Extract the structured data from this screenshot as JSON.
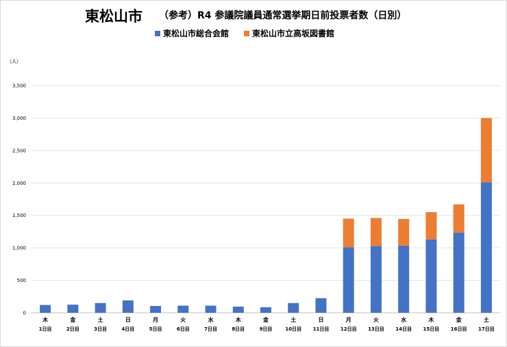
{
  "title": "東松山市",
  "subtitle": "（参考）R4 参議院議員通常選挙期日前投票者数（日別）",
  "unit_label": "（人）",
  "colors": {
    "series1": "#4472C4",
    "series2": "#ED7D31",
    "grid": "#e3e3e3",
    "axis": "#bfbfbf"
  },
  "chart_data": {
    "type": "bar",
    "stacked": true,
    "title": "（参考）R4 参議院議員通常選挙期日前投票者数（日別）",
    "ylabel": "（人）",
    "ylim": [
      0,
      3500
    ],
    "yticks": [
      "0",
      "500",
      "1,000",
      "1,500",
      "2,000",
      "2,500",
      "3,000",
      "3,500"
    ],
    "ytick_values": [
      0,
      500,
      1000,
      1500,
      2000,
      2500,
      3000,
      3500
    ],
    "grid": true,
    "legend_position": "top",
    "weekdays": [
      "木",
      "金",
      "土",
      "日",
      "月",
      "火",
      "水",
      "木",
      "金",
      "土",
      "日",
      "月",
      "火",
      "水",
      "木",
      "金",
      "土"
    ],
    "categories": [
      "1日目",
      "2日目",
      "3日目",
      "4日目",
      "5日目",
      "6日目",
      "7日目",
      "8日目",
      "9日目",
      "10日目",
      "11日目",
      "12日目",
      "13日目",
      "14日目",
      "15日目",
      "16日目",
      "17日目"
    ],
    "series": [
      {
        "name": "東松山市総合会館",
        "values": [
          120,
          125,
          150,
          190,
          105,
          110,
          110,
          95,
          85,
          150,
          225,
          1010,
          1030,
          1035,
          1130,
          1235,
          2010
        ]
      },
      {
        "name": "東松山市立高坂図書館",
        "values": [
          0,
          0,
          0,
          0,
          0,
          0,
          0,
          0,
          0,
          0,
          0,
          440,
          430,
          410,
          420,
          435,
          990
        ]
      }
    ]
  }
}
